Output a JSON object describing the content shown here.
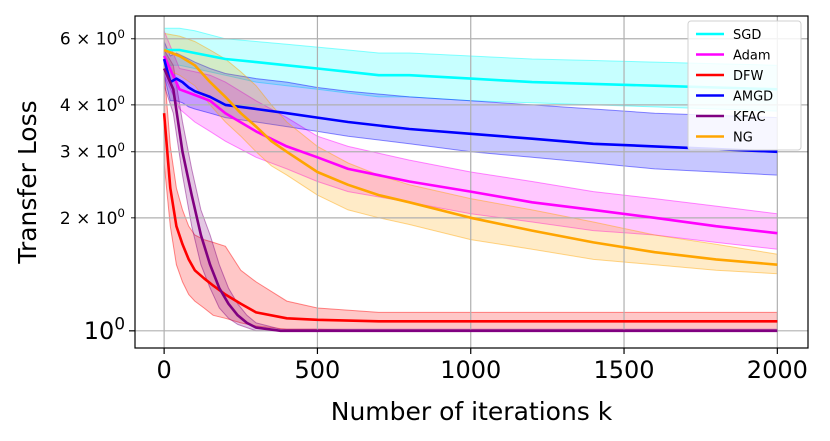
{
  "chart_data": {
    "type": "line",
    "title": "",
    "xlabel": "Number of iterations k",
    "ylabel": "Transfer Loss",
    "xlim": [
      -95,
      2100
    ],
    "ylim": [
      0.9,
      6.9
    ],
    "yscale": "log",
    "grid": true,
    "legend_position": "top-right",
    "x_ticks": [
      0,
      500,
      1000,
      1500,
      2000
    ],
    "x_tick_labels": [
      "0",
      "500",
      "1000",
      "1500",
      "2000"
    ],
    "y_ticks": [
      {
        "value": 1,
        "base": "10",
        "exp": "0",
        "major": true
      },
      {
        "value": 2,
        "coef": "2",
        "base": "10",
        "exp": "0",
        "major": false
      },
      {
        "value": 3,
        "coef": "3",
        "base": "10",
        "exp": "0",
        "major": false
      },
      {
        "value": 4,
        "coef": "4",
        "base": "10",
        "exp": "0",
        "major": false
      },
      {
        "value": 6,
        "coef": "6",
        "base": "10",
        "exp": "0",
        "major": false
      }
    ],
    "series": [
      {
        "name": "SGD",
        "color": "#00ffff",
        "x": [
          0,
          50,
          100,
          200,
          300,
          400,
          500,
          600,
          700,
          800,
          1000,
          1200,
          1400,
          1600,
          1800,
          2000
        ],
        "y": [
          5.6,
          5.6,
          5.5,
          5.3,
          5.2,
          5.1,
          5.0,
          4.9,
          4.8,
          4.8,
          4.7,
          4.6,
          4.55,
          4.5,
          4.45,
          4.4
        ],
        "lower": [
          5.1,
          5.1,
          5.0,
          4.8,
          4.6,
          4.5,
          4.4,
          4.3,
          4.2,
          4.2,
          4.1,
          4.05,
          4.0,
          3.95,
          3.9,
          3.85
        ],
        "upper": [
          6.4,
          6.4,
          6.3,
          6.0,
          5.9,
          5.8,
          5.7,
          5.6,
          5.5,
          5.5,
          5.4,
          5.3,
          5.25,
          5.2,
          5.15,
          5.1
        ]
      },
      {
        "name": "Adam",
        "color": "#ff00ff",
        "x": [
          0,
          50,
          100,
          150,
          200,
          300,
          400,
          500,
          600,
          800,
          1000,
          1200,
          1400,
          1600,
          1800,
          2000
        ],
        "y": [
          5.4,
          4.4,
          4.25,
          4.1,
          3.8,
          3.4,
          3.1,
          2.9,
          2.7,
          2.5,
          2.35,
          2.2,
          2.1,
          2.0,
          1.9,
          1.82
        ],
        "lower": [
          4.8,
          3.9,
          3.6,
          3.4,
          3.2,
          2.9,
          2.7,
          2.5,
          2.35,
          2.2,
          2.05,
          1.95,
          1.85,
          1.8,
          1.72,
          1.65
        ],
        "upper": [
          6.3,
          5.0,
          4.9,
          4.8,
          4.6,
          4.1,
          3.7,
          3.3,
          3.1,
          2.85,
          2.65,
          2.5,
          2.35,
          2.25,
          2.15,
          2.05
        ]
      },
      {
        "name": "DFW",
        "color": "#ff0000",
        "x": [
          0,
          20,
          40,
          60,
          80,
          100,
          130,
          160,
          200,
          250,
          300,
          400,
          500,
          700,
          1000,
          1300,
          1600,
          2000
        ],
        "y": [
          3.8,
          2.4,
          1.9,
          1.7,
          1.55,
          1.45,
          1.38,
          1.32,
          1.25,
          1.18,
          1.12,
          1.08,
          1.07,
          1.06,
          1.06,
          1.06,
          1.06,
          1.06
        ],
        "lower": [
          2.8,
          1.9,
          1.5,
          1.35,
          1.25,
          1.2,
          1.15,
          1.1,
          1.08,
          1.05,
          1.03,
          1.01,
          1.01,
          1.0,
          1.0,
          1.0,
          1.0,
          1.0
        ],
        "upper": [
          5.0,
          3.1,
          2.4,
          2.1,
          1.9,
          1.8,
          1.75,
          1.72,
          1.68,
          1.45,
          1.35,
          1.2,
          1.15,
          1.12,
          1.12,
          1.12,
          1.12,
          1.12
        ]
      },
      {
        "name": "AMGD",
        "color": "#0000ff",
        "x": [
          0,
          20,
          40,
          60,
          80,
          100,
          150,
          200,
          300,
          400,
          500,
          600,
          800,
          1000,
          1200,
          1400,
          1600,
          1800,
          2000
        ],
        "y": [
          5.3,
          4.6,
          4.7,
          4.6,
          4.45,
          4.35,
          4.2,
          4.0,
          3.9,
          3.8,
          3.7,
          3.6,
          3.45,
          3.35,
          3.25,
          3.15,
          3.1,
          3.05,
          3.0
        ],
        "lower": [
          4.8,
          4.1,
          4.1,
          4.05,
          3.95,
          3.9,
          3.8,
          3.7,
          3.6,
          3.5,
          3.4,
          3.3,
          3.15,
          3.0,
          2.9,
          2.8,
          2.7,
          2.65,
          2.6
        ],
        "upper": [
          5.9,
          5.4,
          5.5,
          5.4,
          5.3,
          5.2,
          5.0,
          4.85,
          4.7,
          4.6,
          4.45,
          4.35,
          4.2,
          4.1,
          4.0,
          3.9,
          3.8,
          3.75,
          3.7
        ]
      },
      {
        "name": "KFAC",
        "color": "#800080",
        "x": [
          0,
          30,
          60,
          90,
          120,
          150,
          180,
          210,
          240,
          270,
          300,
          340,
          380,
          420,
          500,
          700,
          1000,
          1500,
          2000
        ],
        "y": [
          5.0,
          4.4,
          3.0,
          2.3,
          1.8,
          1.5,
          1.3,
          1.18,
          1.1,
          1.05,
          1.02,
          1.01,
          1.0,
          1.0,
          1.0,
          1.0,
          1.0,
          1.0,
          1.0
        ],
        "lower": [
          4.5,
          3.8,
          2.6,
          1.9,
          1.5,
          1.3,
          1.15,
          1.08,
          1.04,
          1.02,
          1.0,
          1.0,
          1.0,
          1.0,
          1.0,
          1.0,
          1.0,
          1.0,
          1.0
        ],
        "upper": [
          5.6,
          5.1,
          3.6,
          2.7,
          2.1,
          1.8,
          1.5,
          1.3,
          1.18,
          1.1,
          1.05,
          1.03,
          1.01,
          1.01,
          1.01,
          1.01,
          1.01,
          1.01,
          1.01
        ]
      },
      {
        "name": "NG",
        "color": "#ffa500",
        "x": [
          0,
          50,
          100,
          150,
          200,
          250,
          300,
          350,
          400,
          500,
          600,
          700,
          800,
          1000,
          1200,
          1400,
          1600,
          1800,
          2000
        ],
        "y": [
          5.6,
          5.4,
          5.1,
          4.6,
          4.2,
          3.8,
          3.5,
          3.2,
          3.0,
          2.65,
          2.45,
          2.3,
          2.2,
          2.0,
          1.85,
          1.72,
          1.62,
          1.55,
          1.5
        ],
        "lower": [
          5.0,
          4.8,
          4.5,
          4.0,
          3.6,
          3.3,
          3.0,
          2.75,
          2.6,
          2.3,
          2.1,
          2.0,
          1.92,
          1.75,
          1.65,
          1.55,
          1.5,
          1.45,
          1.42
        ],
        "upper": [
          6.2,
          6.1,
          5.9,
          5.6,
          5.3,
          4.9,
          4.5,
          4.0,
          3.6,
          3.1,
          2.8,
          2.6,
          2.45,
          2.25,
          2.1,
          1.95,
          1.8,
          1.7,
          1.6
        ]
      }
    ]
  }
}
